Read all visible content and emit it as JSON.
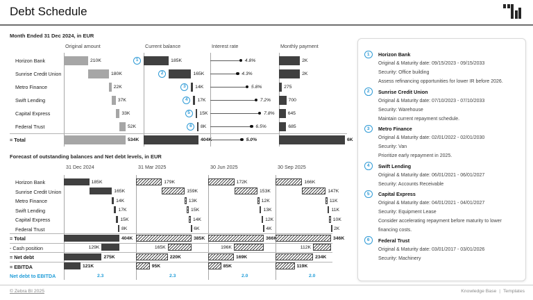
{
  "header": {
    "title": "Debt Schedule"
  },
  "icons": {
    "logo": "bar-chart-logo"
  },
  "colors": {
    "accent_blue": "#2e9ad6",
    "ratio_blue": "#1f9cd8",
    "bar_dark": "#404040",
    "bar_gray": "#a6a6a6"
  },
  "chart_data": [
    {
      "type": "bar",
      "title": "Month Ended 31 Dec 2024, in EUR",
      "categories": [
        "Horizon Bank",
        "Sunrise Credit Union",
        "Metro Finance",
        "Swift Lending",
        "Capital Express",
        "Federal Trust"
      ],
      "total_label": "= Total",
      "columns": [
        {
          "header": "Original amount",
          "kind": "waterfall",
          "bar_style": "gray",
          "values": [
            210,
            180,
            22,
            37,
            33,
            52
          ],
          "value_labels": [
            "210K",
            "180K",
            "22K",
            "37K",
            "33K",
            "52K"
          ],
          "total": 534,
          "total_value_label": "534K"
        },
        {
          "header": "Current balance",
          "kind": "waterfall",
          "bar_style": "dark",
          "numbered": true,
          "values": [
            185,
            165,
            14,
            17,
            15,
            8
          ],
          "value_labels": [
            "185K",
            "165K",
            "14K",
            "17K",
            "15K",
            "8K"
          ],
          "total": 404,
          "total_value_label": "404K"
        },
        {
          "header": "Interest rate",
          "kind": "lollipop",
          "axis_max": 8,
          "values": [
            4.8,
            4.3,
            5.8,
            7.2,
            7.8,
            6.5
          ],
          "value_labels": [
            "4.8%",
            "4.3%",
            "5.8%",
            "7.2%",
            "7.8%",
            "6.5%"
          ],
          "total": 5.0,
          "total_value_label": "5.0%"
        },
        {
          "header": "Monthly payment",
          "kind": "bar",
          "bar_style": "dark",
          "values": [
            2000,
            2000,
            275,
            700,
            645,
            685
          ],
          "value_labels": [
            "2K",
            "2K",
            "275",
            "700",
            "645",
            "685"
          ],
          "total": 6305,
          "total_value_label": "6K"
        }
      ]
    },
    {
      "type": "bar",
      "title": "Forecast of outstanding balances and Net debt levels, in EUR",
      "categories": [
        "Horizon Bank",
        "Sunrise Credit Union",
        "Metro Finance",
        "Swift Lending",
        "Capital Express",
        "Federal Trust"
      ],
      "summary_rows": [
        "= Total",
        "- Cash position",
        "= Net debt",
        "= EBITDA",
        "Net debt to EBITDA"
      ],
      "columns": [
        {
          "header": "31 Dec 2024",
          "bar_style": "dark",
          "values": [
            185,
            165,
            14,
            17,
            15,
            8
          ],
          "value_labels": [
            "185K",
            "165K",
            "14K",
            "17K",
            "15K",
            "8K"
          ],
          "total": 404,
          "total_value_label": "404K",
          "cash": 129,
          "cash_label": "129K",
          "net_debt": 275,
          "net_debt_label": "275K",
          "ebitda": 121,
          "ebitda_label": "121K",
          "ratio_label": "2.3"
        },
        {
          "header": "31 Mar 2025",
          "bar_style": "hatch",
          "values": [
            179,
            159,
            13,
            15,
            14,
            6
          ],
          "value_labels": [
            "179K",
            "159K",
            "13K",
            "15K",
            "14K",
            "6K"
          ],
          "total": 385,
          "total_value_label": "385K",
          "cash": 165,
          "cash_label": "165K",
          "net_debt": 220,
          "net_debt_label": "220K",
          "ebitda": 95,
          "ebitda_label": "95K",
          "ratio_label": "2.3"
        },
        {
          "header": "30 Jun 2025",
          "bar_style": "hatch",
          "values": [
            172,
            153,
            12,
            13,
            12,
            4
          ],
          "value_labels": [
            "172K",
            "153K",
            "12K",
            "13K",
            "12K",
            "4K"
          ],
          "total": 366,
          "total_value_label": "366K",
          "cash": 196,
          "cash_label": "196K",
          "net_debt": 169,
          "net_debt_label": "169K",
          "ebitda": 85,
          "ebitda_label": "85K",
          "ratio_label": "2.0"
        },
        {
          "header": "30 Sep 2025",
          "bar_style": "hatch",
          "values": [
            166,
            147,
            11,
            11,
            10,
            2
          ],
          "value_labels": [
            "166K",
            "147K",
            "11K",
            "11K",
            "10K",
            "2K"
          ],
          "total": 346,
          "total_value_label": "346K",
          "cash": 112,
          "cash_label": "112K",
          "net_debt": 234,
          "net_debt_label": "234K",
          "ebitda": 119,
          "ebitda_label": "119K",
          "ratio_label": "2.0"
        }
      ]
    }
  ],
  "notes": {
    "items": [
      {
        "num": "1",
        "name": "Horizon Bank",
        "lines": [
          "Original & Maturity date: 09/15/2023 - 09/15/2033",
          "Security: Office building",
          "Assess refinancing opportunities for lower IR before 2026."
        ]
      },
      {
        "num": "2",
        "name": "Sunrise Credit Union",
        "lines": [
          "Original & Maturity date: 07/10/2023 - 07/10/2033",
          "Security: Warehouse",
          "Maintain current repayment schedule."
        ]
      },
      {
        "num": "3",
        "name": "Metro Finance",
        "lines": [
          "Original & Maturity date: 02/01/2022 - 02/01/2030",
          "Security: Van",
          "Prioritize early repayment in 2025."
        ]
      },
      {
        "num": "4",
        "name": "Swift Lending",
        "lines": [
          "Original & Maturity date: 06/01/2021 - 06/01/2027",
          "Security: Accounts Receivable"
        ]
      },
      {
        "num": "5",
        "name": "Capital Express",
        "lines": [
          "Original & Maturity date: 04/01/2021 - 04/01/2027",
          "Security: Equipment Lease",
          "Consider accelerating repayment before maturity to lower financing costs."
        ]
      },
      {
        "num": "6",
        "name": "Federal Trust",
        "lines": [
          "Original & Maturity date: 03/01/2017 - 03/01/2026",
          "Security: Machinery"
        ]
      }
    ]
  },
  "footer": {
    "copyright": "© Zebra BI 2025",
    "links": [
      "Knowledge Base",
      "Templates"
    ],
    "separator": "|"
  }
}
